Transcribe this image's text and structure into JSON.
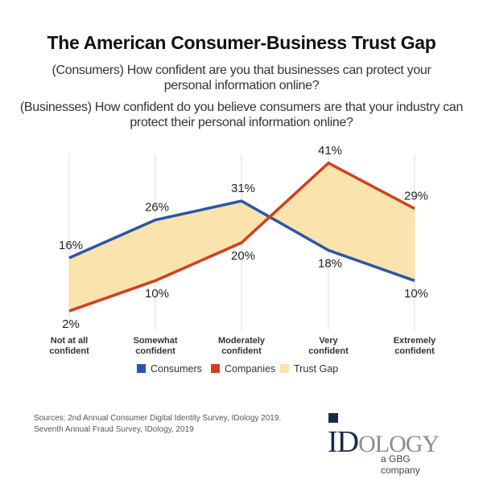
{
  "title": "The American Consumer-Business Trust Gap",
  "subtitle_consumers": "(Consumers) How confident are you that businesses can protect your personal information online?",
  "subtitle_businesses": "(Businesses) How confident do you believe consumers are that your industry can protect their personal information online?",
  "chart_data": {
    "type": "line",
    "title": "The American Consumer-Business Trust Gap",
    "categories": [
      [
        "Not at all",
        "confident"
      ],
      [
        "Somewhat",
        "confident"
      ],
      [
        "Moderately",
        "confident"
      ],
      [
        "Very",
        "confident"
      ],
      [
        "Extremely",
        "confident"
      ]
    ],
    "series": [
      {
        "name": "Consumers",
        "values": [
          16,
          26,
          31,
          18,
          10
        ],
        "labels": [
          "16%",
          "26%",
          "31%",
          "18%",
          "10%"
        ],
        "color": "#2b56a8"
      },
      {
        "name": "Companies",
        "values": [
          2,
          10,
          20,
          41,
          29
        ],
        "labels": [
          "2%",
          "10%",
          "20%",
          "41%",
          "29%"
        ],
        "color": "#d23f1f"
      }
    ],
    "area": {
      "name": "Trust Gap",
      "color": "#fbe3ad",
      "between": [
        "Consumers",
        "Companies"
      ]
    },
    "legend": [
      "Consumers",
      "Companies",
      "Trust Gap"
    ],
    "legend_position": "bottom",
    "grid": "vertical",
    "unit": "%"
  },
  "sources": [
    "Sources:  2nd Annual Consumer Digital Identity Survey, IDology 2019.",
    "Seventh Annual Fraud Survey, IDology, 2019"
  ],
  "logo": {
    "text_main": "ID",
    "text_rest": "OLOGY",
    "tagline": "a GBG company"
  }
}
